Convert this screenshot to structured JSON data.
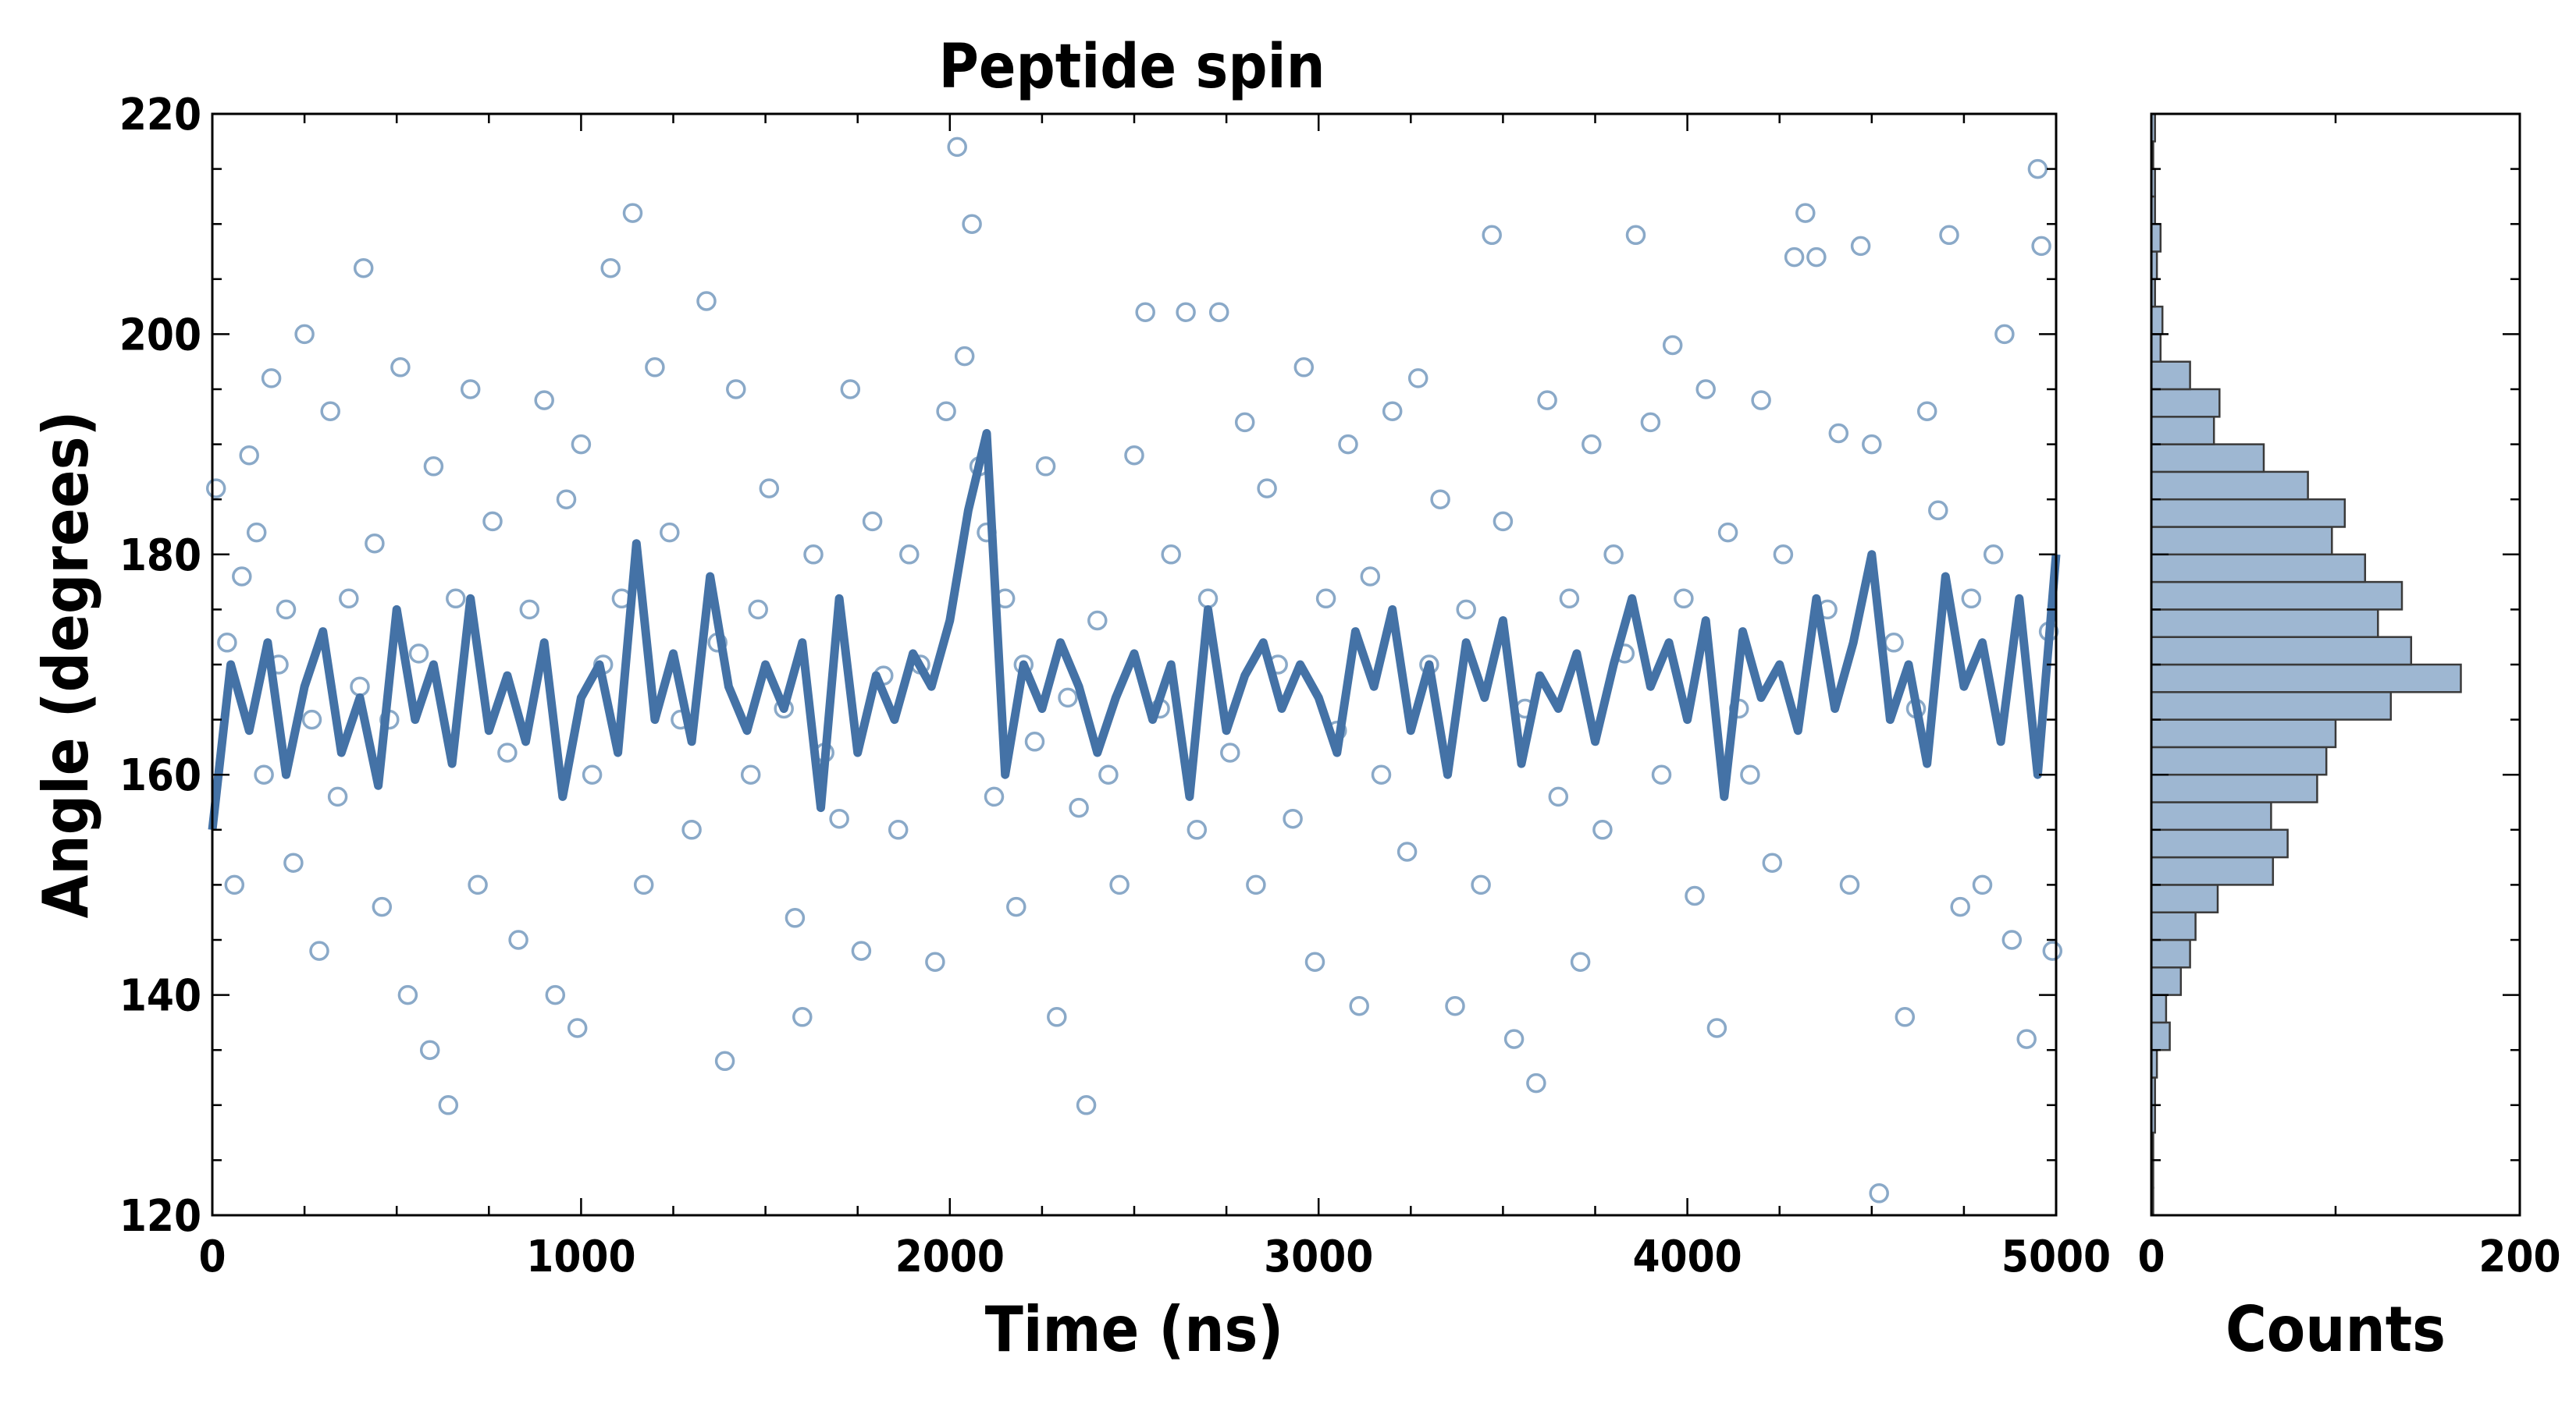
{
  "chart_data": [
    {
      "type": "scatter",
      "title": "Peptide spin",
      "xlabel": "Time (ns)",
      "ylabel": "Angle (degrees)",
      "xlim": [
        0,
        5000
      ],
      "ylim": [
        120,
        220
      ],
      "x_ticks": [
        "0",
        "1000",
        "2000",
        "3000",
        "4000",
        "5000"
      ],
      "y_ticks": [
        "120",
        "140",
        "160",
        "180",
        "200",
        "220"
      ],
      "grid": false,
      "colors": {
        "points": "#8aa9c8",
        "line": "#4472a6"
      },
      "series": [
        {
          "style": "open-circles",
          "points": [
            [
              10,
              186
            ],
            [
              40,
              172
            ],
            [
              60,
              150
            ],
            [
              80,
              178
            ],
            [
              100,
              189
            ],
            [
              120,
              182
            ],
            [
              140,
              160
            ],
            [
              160,
              196
            ],
            [
              180,
              170
            ],
            [
              200,
              175
            ],
            [
              220,
              152
            ],
            [
              250,
              200
            ],
            [
              270,
              165
            ],
            [
              290,
              144
            ],
            [
              320,
              193
            ],
            [
              340,
              158
            ],
            [
              370,
              176
            ],
            [
              400,
              168
            ],
            [
              410,
              206
            ],
            [
              440,
              181
            ],
            [
              460,
              148
            ],
            [
              480,
              165
            ],
            [
              510,
              197
            ],
            [
              530,
              140
            ],
            [
              560,
              171
            ],
            [
              590,
              135
            ],
            [
              600,
              188
            ],
            [
              640,
              130
            ],
            [
              660,
              176
            ],
            [
              700,
              195
            ],
            [
              720,
              150
            ],
            [
              760,
              183
            ],
            [
              800,
              162
            ],
            [
              830,
              145
            ],
            [
              860,
              175
            ],
            [
              900,
              194
            ],
            [
              930,
              140
            ],
            [
              960,
              185
            ],
            [
              990,
              137
            ],
            [
              1000,
              190
            ],
            [
              1030,
              160
            ],
            [
              1060,
              170
            ],
            [
              1080,
              206
            ],
            [
              1110,
              176
            ],
            [
              1140,
              211
            ],
            [
              1170,
              150
            ],
            [
              1200,
              197
            ],
            [
              1240,
              182
            ],
            [
              1270,
              165
            ],
            [
              1300,
              155
            ],
            [
              1340,
              203
            ],
            [
              1370,
              172
            ],
            [
              1390,
              134
            ],
            [
              1420,
              195
            ],
            [
              1460,
              160
            ],
            [
              1480,
              175
            ],
            [
              1510,
              186
            ],
            [
              1550,
              166
            ],
            [
              1580,
              147
            ],
            [
              1600,
              138
            ],
            [
              1630,
              180
            ],
            [
              1660,
              162
            ],
            [
              1700,
              156
            ],
            [
              1730,
              195
            ],
            [
              1760,
              144
            ],
            [
              1790,
              183
            ],
            [
              1820,
              169
            ],
            [
              1860,
              155
            ],
            [
              1890,
              180
            ],
            [
              1920,
              170
            ],
            [
              1960,
              143
            ],
            [
              1990,
              193
            ],
            [
              2020,
              217
            ],
            [
              2040,
              198
            ],
            [
              2060,
              210
            ],
            [
              2080,
              188
            ],
            [
              2100,
              182
            ],
            [
              2120,
              158
            ],
            [
              2150,
              176
            ],
            [
              2180,
              148
            ],
            [
              2200,
              170
            ],
            [
              2230,
              163
            ],
            [
              2260,
              188
            ],
            [
              2290,
              138
            ],
            [
              2320,
              167
            ],
            [
              2350,
              157
            ],
            [
              2370,
              130
            ],
            [
              2400,
              174
            ],
            [
              2430,
              160
            ],
            [
              2460,
              150
            ],
            [
              2500,
              189
            ],
            [
              2530,
              202
            ],
            [
              2570,
              166
            ],
            [
              2600,
              180
            ],
            [
              2640,
              202
            ],
            [
              2670,
              155
            ],
            [
              2700,
              176
            ],
            [
              2730,
              202
            ],
            [
              2760,
              162
            ],
            [
              2800,
              192
            ],
            [
              2830,
              150
            ],
            [
              2860,
              186
            ],
            [
              2890,
              170
            ],
            [
              2930,
              156
            ],
            [
              2960,
              197
            ],
            [
              2990,
              143
            ],
            [
              3020,
              176
            ],
            [
              3050,
              164
            ],
            [
              3080,
              190
            ],
            [
              3110,
              139
            ],
            [
              3140,
              178
            ],
            [
              3170,
              160
            ],
            [
              3200,
              193
            ],
            [
              3240,
              153
            ],
            [
              3270,
              196
            ],
            [
              3300,
              170
            ],
            [
              3330,
              185
            ],
            [
              3370,
              139
            ],
            [
              3400,
              175
            ],
            [
              3440,
              150
            ],
            [
              3470,
              209
            ],
            [
              3500,
              183
            ],
            [
              3530,
              136
            ],
            [
              3560,
              166
            ],
            [
              3590,
              132
            ],
            [
              3620,
              194
            ],
            [
              3650,
              158
            ],
            [
              3680,
              176
            ],
            [
              3710,
              143
            ],
            [
              3740,
              190
            ],
            [
              3770,
              155
            ],
            [
              3800,
              180
            ],
            [
              3830,
              171
            ],
            [
              3860,
              209
            ],
            [
              3900,
              192
            ],
            [
              3930,
              160
            ],
            [
              3960,
              199
            ],
            [
              3990,
              176
            ],
            [
              4020,
              149
            ],
            [
              4050,
              195
            ],
            [
              4080,
              137
            ],
            [
              4110,
              182
            ],
            [
              4140,
              166
            ],
            [
              4170,
              160
            ],
            [
              4200,
              194
            ],
            [
              4230,
              152
            ],
            [
              4260,
              180
            ],
            [
              4290,
              207
            ],
            [
              4320,
              211
            ],
            [
              4350,
              207
            ],
            [
              4380,
              175
            ],
            [
              4410,
              191
            ],
            [
              4440,
              150
            ],
            [
              4470,
              208
            ],
            [
              4500,
              190
            ],
            [
              4520,
              122
            ],
            [
              4560,
              172
            ],
            [
              4590,
              138
            ],
            [
              4620,
              166
            ],
            [
              4650,
              193
            ],
            [
              4680,
              184
            ],
            [
              4710,
              209
            ],
            [
              4740,
              148
            ],
            [
              4770,
              176
            ],
            [
              4800,
              150
            ],
            [
              4830,
              180
            ],
            [
              4860,
              200
            ],
            [
              4880,
              145
            ],
            [
              4920,
              136
            ],
            [
              4950,
              215
            ],
            [
              4960,
              208
            ],
            [
              4980,
              173
            ],
            [
              4990,
              144
            ]
          ]
        },
        {
          "style": "line",
          "x": [
            0,
            50,
            100,
            150,
            200,
            250,
            300,
            350,
            400,
            450,
            500,
            550,
            600,
            650,
            700,
            750,
            800,
            850,
            900,
            950,
            1000,
            1050,
            1100,
            1150,
            1200,
            1250,
            1300,
            1350,
            1400,
            1450,
            1500,
            1550,
            1600,
            1650,
            1700,
            1750,
            1800,
            1850,
            1900,
            1950,
            2000,
            2050,
            2100,
            2150,
            2200,
            2250,
            2300,
            2350,
            2400,
            2450,
            2500,
            2550,
            2600,
            2650,
            2700,
            2750,
            2800,
            2850,
            2900,
            2950,
            3000,
            3050,
            3100,
            3150,
            3200,
            3250,
            3300,
            3350,
            3400,
            3450,
            3500,
            3550,
            3600,
            3650,
            3700,
            3750,
            3800,
            3850,
            3900,
            3950,
            4000,
            4050,
            4100,
            4150,
            4200,
            4250,
            4300,
            4350,
            4400,
            4450,
            4500,
            4550,
            4600,
            4650,
            4700,
            4750,
            4800,
            4850,
            4900,
            4950,
            5000
          ],
          "y": [
            155,
            170,
            164,
            172,
            160,
            168,
            173,
            162,
            167,
            159,
            175,
            165,
            170,
            161,
            176,
            164,
            169,
            163,
            172,
            158,
            167,
            170,
            162,
            181,
            165,
            171,
            163,
            178,
            168,
            164,
            170,
            166,
            172,
            157,
            176,
            162,
            169,
            165,
            171,
            168,
            174,
            184,
            191,
            160,
            170,
            166,
            172,
            168,
            162,
            167,
            171,
            165,
            170,
            158,
            175,
            164,
            169,
            172,
            166,
            170,
            167,
            162,
            173,
            168,
            175,
            164,
            170,
            160,
            172,
            167,
            174,
            161,
            169,
            166,
            171,
            163,
            170,
            176,
            168,
            172,
            165,
            174,
            158,
            173,
            167,
            170,
            164,
            176,
            166,
            172,
            180,
            165,
            170,
            161,
            178,
            168,
            172,
            163,
            176,
            160,
            180
          ]
        }
      ]
    },
    {
      "type": "bar",
      "orientation": "horizontal",
      "xlabel": "Counts",
      "xlim": [
        0,
        200
      ],
      "x_ticks": [
        "0",
        "200"
      ],
      "ylim": [
        120,
        220
      ],
      "colors": {
        "fill": "#9eb7d2",
        "edge": "#3a3a3a"
      },
      "bin_edges": [
        120,
        122.5,
        125,
        127.5,
        130,
        132.5,
        135,
        137.5,
        140,
        142.5,
        145,
        147.5,
        150,
        152.5,
        155,
        157.5,
        160,
        162.5,
        165,
        167.5,
        170,
        172.5,
        175,
        177.5,
        180,
        182.5,
        185,
        187.5,
        190,
        192.5,
        195,
        197.5,
        200,
        202.5,
        205,
        207.5,
        210,
        212.5,
        215,
        217.5,
        220
      ],
      "values": [
        1,
        1,
        1,
        2,
        2,
        3,
        10,
        8,
        16,
        21,
        24,
        36,
        66,
        74,
        65,
        90,
        95,
        100,
        130,
        168,
        141,
        123,
        136,
        116,
        98,
        105,
        85,
        61,
        34,
        37,
        21,
        5,
        6,
        2,
        3,
        5,
        2,
        2,
        1,
        2
      ]
    }
  ]
}
